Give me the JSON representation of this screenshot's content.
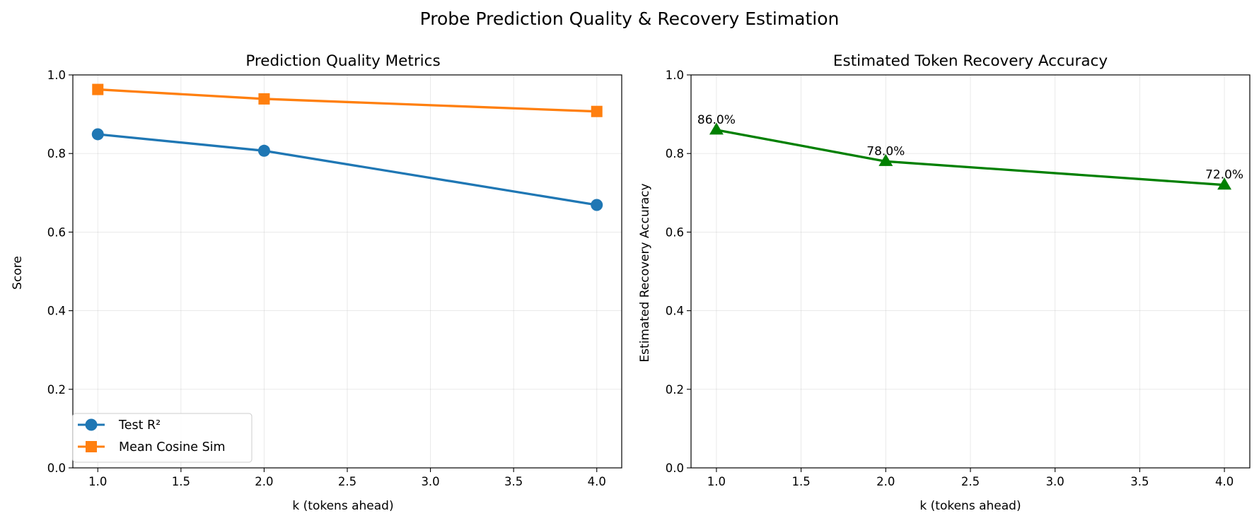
{
  "figure_title": "Probe Prediction Quality & Recovery Estimation",
  "chart_data": [
    {
      "type": "line",
      "title": "Prediction Quality Metrics",
      "xlabel": "k (tokens ahead)",
      "ylabel": "Score",
      "xlim": [
        0.85,
        4.15
      ],
      "ylim": [
        0,
        1.0
      ],
      "xticks": [
        "1.0",
        "1.5",
        "2.0",
        "2.5",
        "3.0",
        "3.5",
        "4.0"
      ],
      "yticks": [
        "0.0",
        "0.2",
        "0.4",
        "0.6",
        "0.8",
        "1.0"
      ],
      "grid": true,
      "legend_position": "lower-left",
      "x": [
        1,
        2,
        4
      ],
      "series": [
        {
          "name": "Test R²",
          "values": [
            0.849,
            0.807,
            0.669
          ],
          "color": "#1f77b4",
          "marker": "circle"
        },
        {
          "name": "Mean Cosine Sim",
          "values": [
            0.963,
            0.939,
            0.907
          ],
          "color": "#ff7f0e",
          "marker": "square"
        }
      ]
    },
    {
      "type": "line",
      "title": "Estimated Token Recovery Accuracy",
      "xlabel": "k (tokens ahead)",
      "ylabel": "Estimated Recovery Accuracy",
      "xlim": [
        0.85,
        4.15
      ],
      "ylim": [
        0,
        1.0
      ],
      "xticks": [
        "1.0",
        "1.5",
        "2.0",
        "2.5",
        "3.0",
        "3.5",
        "4.0"
      ],
      "yticks": [
        "0.0",
        "0.2",
        "0.4",
        "0.6",
        "0.8",
        "1.0"
      ],
      "grid": true,
      "x": [
        1,
        2,
        4
      ],
      "series": [
        {
          "values": [
            0.86,
            0.78,
            0.72
          ],
          "color": "#008000",
          "marker": "triangle",
          "labels": [
            "86.0%",
            "78.0%",
            "72.0%"
          ]
        }
      ]
    }
  ]
}
